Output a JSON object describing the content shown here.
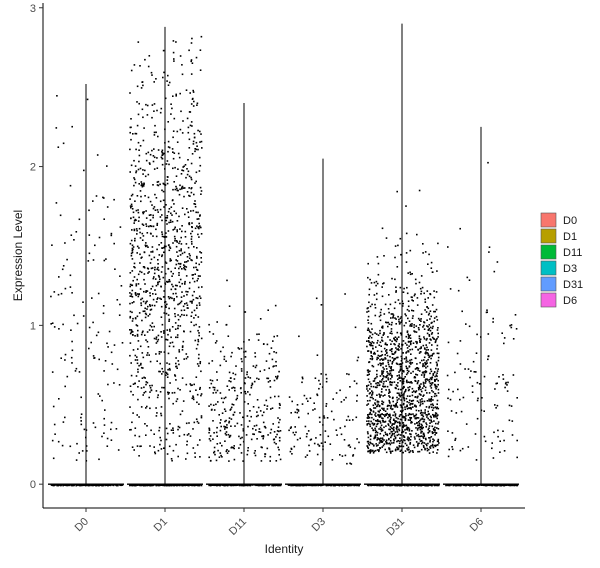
{
  "chart_data": {
    "type": "scatter",
    "subtype": "jitter-strip (violin not shown)",
    "xlabel": "Identity",
    "ylabel": "Expression Level",
    "ylim": [
      -0.15,
      3.03
    ],
    "yticks": [
      0,
      1,
      2,
      3
    ],
    "categories": [
      "D0",
      "D1",
      "D11",
      "D3",
      "D31",
      "D6"
    ],
    "grid": false,
    "legend_position": "right",
    "series": [
      {
        "name": "D0",
        "color": "#F8766D",
        "max": 2.52,
        "n_zero": 230,
        "n_nonzero": 150,
        "nonzero_center": 0.9,
        "nonzero_spread": 0.6,
        "nonzero_min": 0.15
      },
      {
        "name": "D1",
        "color": "#B79F00",
        "max": 2.88,
        "n_zero": 260,
        "n_nonzero": 1100,
        "nonzero_center": 1.35,
        "nonzero_spread": 0.65,
        "nonzero_min": 0.15
      },
      {
        "name": "D11",
        "color": "#00BA38",
        "max": 2.4,
        "n_zero": 230,
        "n_nonzero": 320,
        "nonzero_center": 0.45,
        "nonzero_spread": 0.3,
        "nonzero_min": 0.15
      },
      {
        "name": "D3",
        "color": "#00BFC4",
        "max": 2.05,
        "n_zero": 230,
        "n_nonzero": 130,
        "nonzero_center": 0.35,
        "nonzero_spread": 0.3,
        "nonzero_min": 0.12
      },
      {
        "name": "D31",
        "color": "#619CFF",
        "max": 2.9,
        "n_zero": 260,
        "n_nonzero": 1500,
        "nonzero_center": 0.6,
        "nonzero_spread": 0.35,
        "nonzero_min": 0.2
      },
      {
        "name": "D6",
        "color": "#F564E3",
        "max": 2.25,
        "n_zero": 230,
        "n_nonzero": 120,
        "nonzero_center": 0.5,
        "nonzero_spread": 0.4,
        "nonzero_min": 0.15
      }
    ],
    "point_color": "#000000"
  }
}
